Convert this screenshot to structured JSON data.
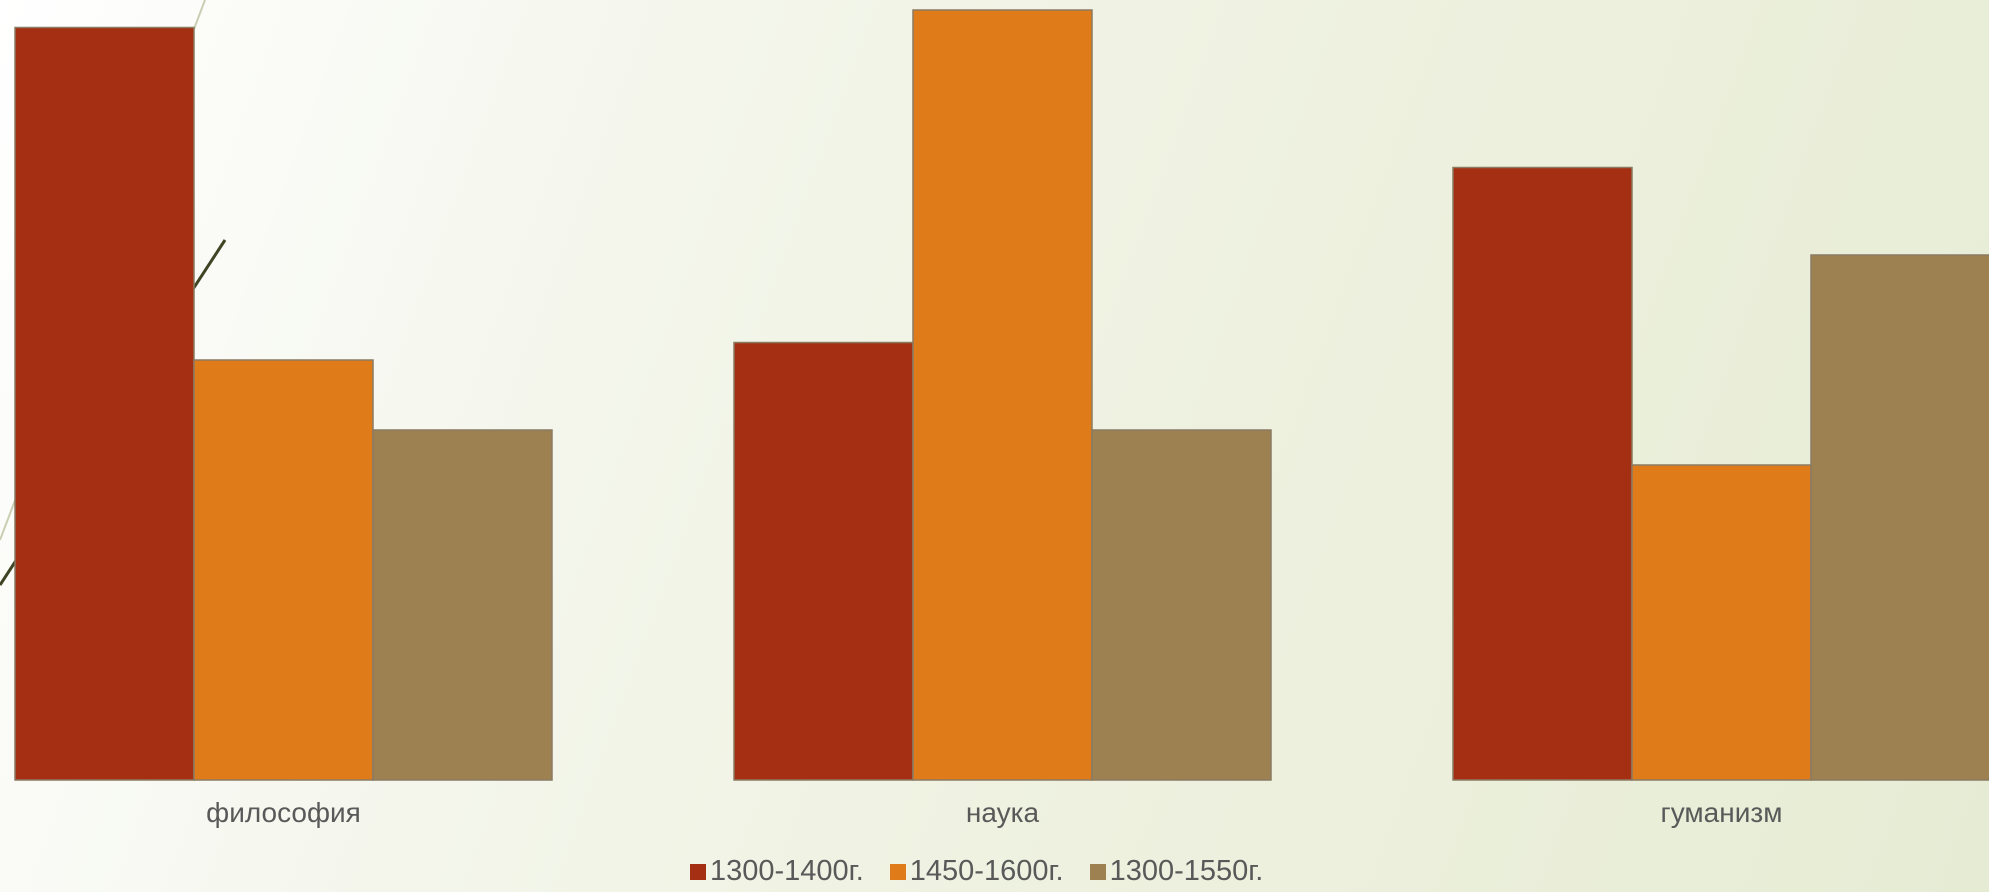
{
  "chart_data": {
    "type": "bar",
    "categories": [
      "философия",
      "наука",
      "гуманизм"
    ],
    "series": [
      {
        "name": "1300-1400г.",
        "color": "#a52f12",
        "values": [
          4.3,
          2.5,
          3.5
        ]
      },
      {
        "name": "1450-1600г.",
        "color": "#e07b1a",
        "values": [
          2.4,
          4.4,
          1.8
        ]
      },
      {
        "name": "1300-1550г.",
        "color": "#9e8150",
        "values": [
          2.0,
          2.0,
          3.0
        ]
      }
    ],
    "title": "",
    "xlabel": "",
    "ylabel": "",
    "ylim": [
      0,
      4.4
    ],
    "grid": false,
    "legend_position": "bottom"
  }
}
